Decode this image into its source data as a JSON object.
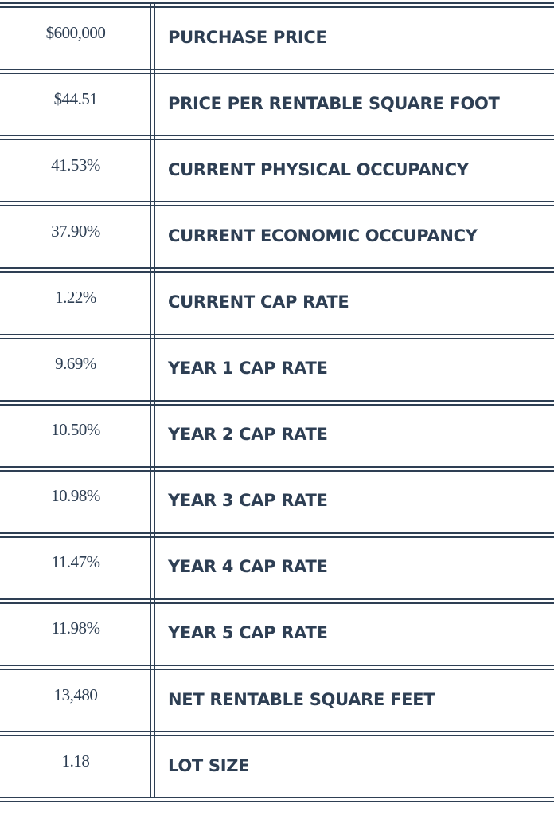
{
  "table": {
    "rows": [
      [
        "$600,000",
        "PURCHASE PRICE"
      ],
      [
        "$44.51",
        "PRICE PER RENTABLE SQUARE FOOT"
      ],
      [
        "41.53%",
        "CURRENT PHYSICAL OCCUPANCY"
      ],
      [
        "37.90%",
        "CURRENT ECONOMIC OCCUPANCY"
      ],
      [
        "1.22%",
        "CURRENT CAP RATE"
      ],
      [
        "9.69%",
        "YEAR 1 CAP RATE"
      ],
      [
        "10.50%",
        "YEAR 2 CAP RATE"
      ],
      [
        "10.98%",
        "YEAR 3 CAP RATE"
      ],
      [
        "11.47%",
        "YEAR 4 CAP RATE"
      ],
      [
        "11.98%",
        "YEAR 5 CAP RATE"
      ],
      [
        "13,480",
        "NET RENTABLE SQUARE FEET"
      ],
      [
        "1.18",
        "LOT SIZE"
      ]
    ]
  }
}
